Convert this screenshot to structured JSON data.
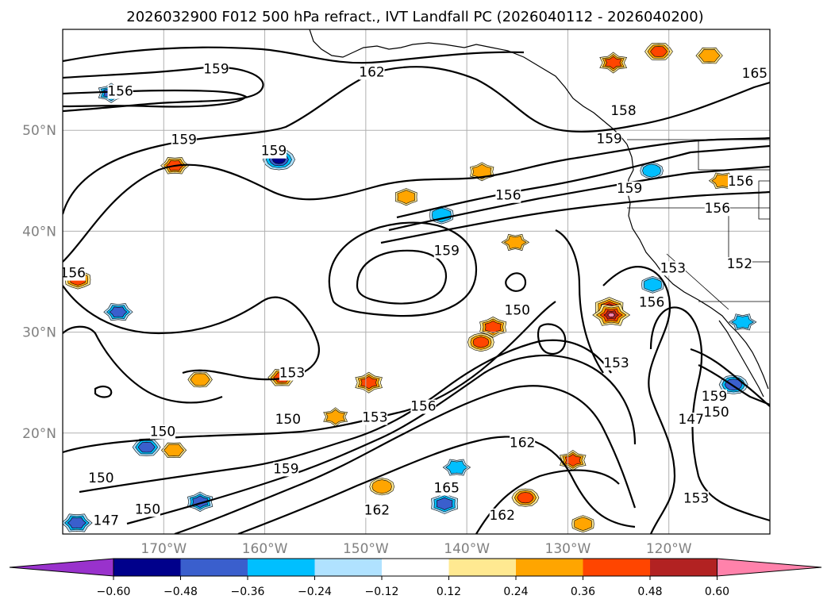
{
  "chart_data": {
    "type": "heatmap",
    "title": "2026032900 F012 500 hPa refract., IVT Landfall PC (2026040112 - 2026040200)",
    "map": {
      "lon_range": [
        -180,
        -110
      ],
      "lat_range": [
        10,
        60
      ],
      "grid": true,
      "lon_ticks": [
        -170,
        -160,
        -150,
        -140,
        -130,
        -120
      ],
      "lon_tick_labels": [
        "170°W",
        "160°W",
        "150°W",
        "140°W",
        "130°W",
        "120°W"
      ],
      "lat_ticks": [
        20,
        30,
        40,
        50
      ],
      "lat_tick_labels": [
        "20°N",
        "30°N",
        "40°N",
        "50°N"
      ]
    },
    "contour_field": {
      "quantity": "500 hPa refractivity",
      "levels": [
        147,
        150,
        153,
        156,
        159,
        162,
        165
      ],
      "labels": [
        {
          "text": "159",
          "lon": -164.8,
          "lat": 55.7
        },
        {
          "text": "162",
          "lon": -149.4,
          "lat": 55.4
        },
        {
          "text": "165",
          "lon": -111.5,
          "lat": 55.3
        },
        {
          "text": "156",
          "lon": -174.3,
          "lat": 53.5
        },
        {
          "text": "158",
          "lon": -124.5,
          "lat": 51.6
        },
        {
          "text": "159",
          "lon": -168.0,
          "lat": 48.7
        },
        {
          "text": "159",
          "lon": -159.1,
          "lat": 47.6
        },
        {
          "text": "159",
          "lon": -125.9,
          "lat": 48.8
        },
        {
          "text": "156",
          "lon": -112.9,
          "lat": 44.6
        },
        {
          "text": "159",
          "lon": -123.9,
          "lat": 43.9
        },
        {
          "text": "156",
          "lon": -135.9,
          "lat": 43.2
        },
        {
          "text": "156",
          "lon": -115.2,
          "lat": 41.9
        },
        {
          "text": "156",
          "lon": -179.0,
          "lat": 35.5
        },
        {
          "text": "159",
          "lon": -142.0,
          "lat": 37.7
        },
        {
          "text": "153",
          "lon": -119.6,
          "lat": 36.0
        },
        {
          "text": "152",
          "lon": -113.0,
          "lat": 36.4
        },
        {
          "text": "156",
          "lon": -121.7,
          "lat": 32.6
        },
        {
          "text": "150",
          "lon": -135.0,
          "lat": 31.8
        },
        {
          "text": "153",
          "lon": -125.2,
          "lat": 26.6
        },
        {
          "text": "159",
          "lon": -115.5,
          "lat": 23.3
        },
        {
          "text": "153",
          "lon": -157.3,
          "lat": 25.6
        },
        {
          "text": "150",
          "lon": -157.7,
          "lat": 21.0
        },
        {
          "text": "153",
          "lon": -149.1,
          "lat": 21.2
        },
        {
          "text": "156",
          "lon": -144.3,
          "lat": 22.3
        },
        {
          "text": "150",
          "lon": -115.3,
          "lat": 21.7
        },
        {
          "text": "147",
          "lon": -117.8,
          "lat": 21.0
        },
        {
          "text": "150",
          "lon": -170.1,
          "lat": 19.8
        },
        {
          "text": "162",
          "lon": -134.5,
          "lat": 18.7
        },
        {
          "text": "159",
          "lon": -157.9,
          "lat": 16.1
        },
        {
          "text": "150",
          "lon": -176.2,
          "lat": 15.2
        },
        {
          "text": "165",
          "lon": -142.0,
          "lat": 14.2
        },
        {
          "text": "153",
          "lon": -117.3,
          "lat": 13.2
        },
        {
          "text": "162",
          "lon": -148.9,
          "lat": 12.0
        },
        {
          "text": "147",
          "lon": -175.7,
          "lat": 11.0
        },
        {
          "text": "150",
          "lon": -171.6,
          "lat": 12.1
        },
        {
          "text": "162",
          "lon": -136.5,
          "lat": 11.5
        }
      ]
    },
    "shaded_field": {
      "quantity": "IVT Landfall PC",
      "colorbar": {
        "extend": "both",
        "ticks": [
          -0.6,
          -0.48,
          -0.36,
          -0.24,
          -0.12,
          0.12,
          0.24,
          0.36,
          0.48,
          0.6
        ],
        "tick_labels": [
          "−0.60",
          "−0.48",
          "−0.36",
          "−0.24",
          "−0.12",
          "0.12",
          "0.24",
          "0.36",
          "0.48",
          "0.60"
        ],
        "colors": [
          "#9932cc",
          "#00008b",
          "#3a5fcd",
          "#00bfff",
          "#b0e2ff",
          "#ffffff",
          "#ffe991",
          "#ffa500",
          "#ff4500",
          "#b22222",
          "#ff82ab"
        ]
      },
      "regions": [
        {
          "lon": -125.5,
          "lat": 56.7,
          "value": 0.45
        },
        {
          "lon": -121.0,
          "lat": 57.8,
          "value": 0.4
        },
        {
          "lon": -116.0,
          "lat": 57.4,
          "value": 0.35
        },
        {
          "lon": -175.2,
          "lat": 53.7,
          "value": -0.4
        },
        {
          "lon": -158.6,
          "lat": 47.1,
          "value": -0.55
        },
        {
          "lon": -168.9,
          "lat": 46.5,
          "value": 0.38
        },
        {
          "lon": -138.5,
          "lat": 45.9,
          "value": 0.35
        },
        {
          "lon": -121.7,
          "lat": 46.0,
          "value": -0.3
        },
        {
          "lon": -114.7,
          "lat": 45.0,
          "value": 0.33
        },
        {
          "lon": -146.0,
          "lat": 43.4,
          "value": 0.3
        },
        {
          "lon": -142.5,
          "lat": 41.6,
          "value": -0.35
        },
        {
          "lon": -135.2,
          "lat": 38.9,
          "value": 0.35
        },
        {
          "lon": -121.6,
          "lat": 34.7,
          "value": -0.3
        },
        {
          "lon": -125.9,
          "lat": 32.4,
          "value": 0.5
        },
        {
          "lon": -125.7,
          "lat": 31.7,
          "value": 0.62
        },
        {
          "lon": -138.6,
          "lat": 29.0,
          "value": 0.4
        },
        {
          "lon": -137.4,
          "lat": 30.5,
          "value": 0.45
        },
        {
          "lon": -174.5,
          "lat": 32.0,
          "value": -0.4
        },
        {
          "lon": -113.6,
          "lat": 24.8,
          "value": -0.45
        },
        {
          "lon": -149.7,
          "lat": 25.0,
          "value": 0.45
        },
        {
          "lon": -158.3,
          "lat": 25.5,
          "value": 0.38
        },
        {
          "lon": -166.4,
          "lat": 25.3,
          "value": 0.3
        },
        {
          "lon": -153.0,
          "lat": 21.6,
          "value": 0.35
        },
        {
          "lon": -171.7,
          "lat": 18.6,
          "value": -0.4
        },
        {
          "lon": -169.0,
          "lat": 18.3,
          "value": 0.3
        },
        {
          "lon": -129.5,
          "lat": 17.3,
          "value": 0.42
        },
        {
          "lon": -134.2,
          "lat": 13.6,
          "value": 0.4
        },
        {
          "lon": -178.6,
          "lat": 11.1,
          "value": -0.45
        },
        {
          "lon": -166.4,
          "lat": 13.2,
          "value": -0.4
        },
        {
          "lon": -148.4,
          "lat": 14.7,
          "value": 0.35
        },
        {
          "lon": -141.0,
          "lat": 16.6,
          "value": -0.35
        },
        {
          "lon": -142.2,
          "lat": 13.0,
          "value": -0.45
        },
        {
          "lon": -178.5,
          "lat": 35.2,
          "value": 0.4
        },
        {
          "lon": -112.7,
          "lat": 31.0,
          "value": -0.35
        },
        {
          "lon": -128.5,
          "lat": 11.0,
          "value": 0.3
        }
      ]
    }
  },
  "colors": {
    "contour": "#000000",
    "grid": "#b0b0b0",
    "coast": "#000000",
    "tick_label": "#808080"
  }
}
